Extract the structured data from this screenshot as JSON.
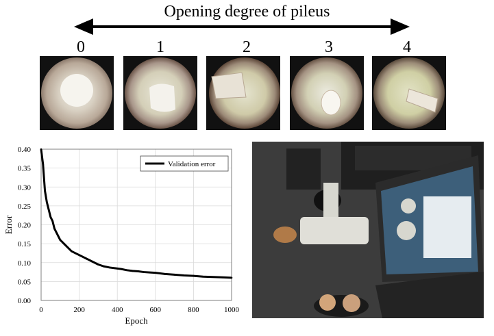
{
  "header": {
    "title": "Opening degree of pileus",
    "degree_labels": [
      "0",
      "1",
      "2",
      "3",
      "4"
    ]
  },
  "photos": [
    {
      "icon": "mushroom-cap-degree-0-photo"
    },
    {
      "icon": "mushroom-cap-degree-1-photo"
    },
    {
      "icon": "mushroom-cap-degree-2-photo"
    },
    {
      "icon": "mushroom-cap-degree-3-photo"
    },
    {
      "icon": "mushroom-cap-degree-4-photo"
    },
    {
      "icon": "microscope-laptop-setup-photo"
    }
  ],
  "chart_data": {
    "type": "line",
    "xlabel": "Epoch",
    "ylabel": "Error",
    "xlim": [
      0,
      1000
    ],
    "ylim": [
      0.0,
      0.4
    ],
    "x_ticks": [
      "0",
      "200",
      "400",
      "600",
      "800",
      "1000"
    ],
    "y_ticks": [
      "0.00",
      "0.05",
      "0.10",
      "0.15",
      "0.20",
      "0.25",
      "0.30",
      "0.35",
      "0.40"
    ],
    "grid": true,
    "legend_position": "top-right",
    "series": [
      {
        "name": "Validation error",
        "color": "#000000",
        "x": [
          0,
          10,
          20,
          30,
          40,
          50,
          60,
          70,
          80,
          90,
          100,
          120,
          140,
          160,
          180,
          200,
          220,
          240,
          260,
          280,
          300,
          330,
          360,
          390,
          420,
          450,
          480,
          510,
          540,
          570,
          600,
          650,
          700,
          750,
          800,
          850,
          900,
          950,
          1000
        ],
        "values": [
          0.4,
          0.36,
          0.29,
          0.26,
          0.24,
          0.22,
          0.21,
          0.19,
          0.18,
          0.17,
          0.16,
          0.15,
          0.14,
          0.13,
          0.125,
          0.12,
          0.115,
          0.11,
          0.105,
          0.1,
          0.095,
          0.09,
          0.087,
          0.085,
          0.083,
          0.08,
          0.078,
          0.077,
          0.075,
          0.074,
          0.073,
          0.07,
          0.068,
          0.066,
          0.065,
          0.063,
          0.062,
          0.061,
          0.06
        ]
      }
    ]
  }
}
